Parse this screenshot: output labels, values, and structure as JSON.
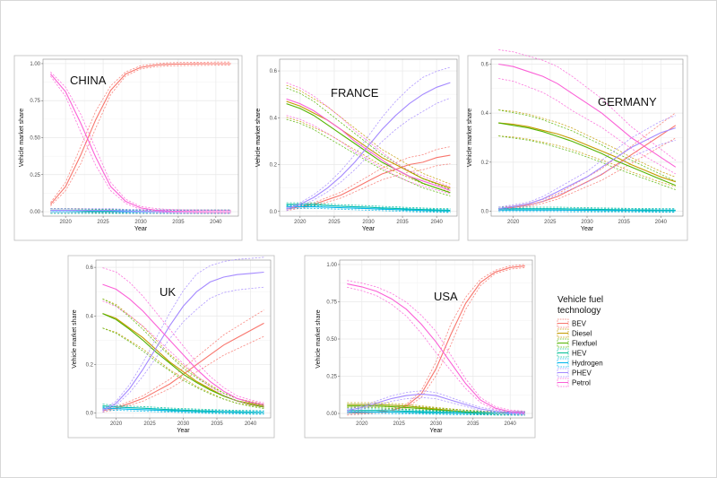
{
  "legend": {
    "title_line1": "Vehicle fuel",
    "title_line2": "technology",
    "entries": [
      {
        "name": "BEV",
        "color": "#f8766d"
      },
      {
        "name": "Diesel",
        "color": "#c49a00"
      },
      {
        "name": "Flexfuel",
        "color": "#53b400"
      },
      {
        "name": "HEV",
        "color": "#00c094"
      },
      {
        "name": "Hydrogen",
        "color": "#00b6eb"
      },
      {
        "name": "PHEV",
        "color": "#a58aff"
      },
      {
        "name": "Petrol",
        "color": "#fb61d7"
      }
    ]
  },
  "chart_data": [
    {
      "type": "line",
      "title": "CHINA",
      "xlabel": "Year",
      "ylabel": "Vehicle market share",
      "xlim": [
        2017,
        2043
      ],
      "ylim": [
        -0.03,
        1.03
      ],
      "xticks": [
        2020,
        2025,
        2030,
        2035,
        2040
      ],
      "yticks": [
        0,
        0.25,
        0.5,
        0.75,
        1
      ],
      "ytick_labels": [
        "0.00",
        "0.25",
        "0.50",
        "0.75",
        "1.00"
      ],
      "x": [
        2018,
        2020,
        2022,
        2024,
        2026,
        2028,
        2030,
        2032,
        2034,
        2036,
        2038,
        2040,
        2042
      ],
      "series": [
        {
          "name": "BEV",
          "values": [
            0.05,
            0.17,
            0.38,
            0.62,
            0.82,
            0.93,
            0.975,
            0.99,
            0.996,
            0.998,
            0.999,
            1.0,
            1.0
          ]
        },
        {
          "name": "Diesel",
          "values": [
            0.01,
            0.01,
            0.01,
            0.005,
            0.005,
            0.003,
            0.002,
            0.001,
            0.001,
            0.0,
            0.0,
            0.0,
            0.0
          ]
        },
        {
          "name": "Flexfuel",
          "values": [
            0.0,
            0.0,
            0.0,
            0.0,
            0.0,
            0.0,
            0.0,
            0.0,
            0.0,
            0.0,
            0.0,
            0.0,
            0.0
          ]
        },
        {
          "name": "HEV",
          "values": [
            0.01,
            0.01,
            0.008,
            0.006,
            0.004,
            0.003,
            0.002,
            0.001,
            0.0,
            0.0,
            0.0,
            0.0,
            0.0
          ]
        },
        {
          "name": "Hydrogen",
          "values": [
            0.0,
            0.0,
            0.0,
            0.0,
            0.0,
            0.0,
            0.0,
            0.0,
            0.0,
            0.0,
            0.0,
            0.0,
            0.0
          ]
        },
        {
          "name": "PHEV",
          "values": [
            0.01,
            0.01,
            0.01,
            0.01,
            0.01,
            0.005,
            0.003,
            0.002,
            0.001,
            0.0,
            0.0,
            0.0,
            0.0
          ]
        },
        {
          "name": "Petrol",
          "values": [
            0.93,
            0.81,
            0.6,
            0.37,
            0.17,
            0.07,
            0.025,
            0.01,
            0.004,
            0.002,
            0.001,
            0.0,
            0.0
          ]
        }
      ]
    },
    {
      "type": "line",
      "title": "FRANCE",
      "xlabel": "Year",
      "ylabel": "Vehicle market share",
      "xlim": [
        2017,
        2043
      ],
      "ylim": [
        -0.02,
        0.65
      ],
      "xticks": [
        2020,
        2025,
        2030,
        2035,
        2040
      ],
      "yticks": [
        0,
        0.2,
        0.4,
        0.6
      ],
      "ytick_labels": [
        "0.0",
        "0.2",
        "0.4",
        "0.6"
      ],
      "x": [
        2018,
        2020,
        2022,
        2024,
        2026,
        2028,
        2030,
        2032,
        2034,
        2036,
        2038,
        2040,
        2042
      ],
      "series": [
        {
          "name": "BEV",
          "values": [
            0.01,
            0.02,
            0.03,
            0.05,
            0.07,
            0.1,
            0.13,
            0.16,
            0.18,
            0.2,
            0.21,
            0.23,
            0.24
          ]
        },
        {
          "name": "Diesel",
          "values": [
            0.47,
            0.45,
            0.42,
            0.39,
            0.35,
            0.31,
            0.27,
            0.23,
            0.2,
            0.17,
            0.14,
            0.12,
            0.1
          ]
        },
        {
          "name": "Flexfuel",
          "values": [
            0.46,
            0.44,
            0.41,
            0.37,
            0.33,
            0.29,
            0.25,
            0.21,
            0.18,
            0.15,
            0.12,
            0.1,
            0.08
          ]
        },
        {
          "name": "HEV",
          "values": [
            0.03,
            0.03,
            0.03,
            0.025,
            0.022,
            0.02,
            0.018,
            0.015,
            0.013,
            0.01,
            0.008,
            0.006,
            0.005
          ]
        },
        {
          "name": "Hydrogen",
          "values": [
            0.02,
            0.02,
            0.02,
            0.018,
            0.016,
            0.014,
            0.012,
            0.01,
            0.008,
            0.006,
            0.004,
            0.003,
            0.002
          ]
        },
        {
          "name": "PHEV",
          "values": [
            0.01,
            0.03,
            0.06,
            0.1,
            0.15,
            0.21,
            0.28,
            0.35,
            0.41,
            0.46,
            0.5,
            0.53,
            0.55
          ]
        },
        {
          "name": "Petrol",
          "values": [
            0.48,
            0.46,
            0.43,
            0.39,
            0.35,
            0.3,
            0.26,
            0.22,
            0.18,
            0.15,
            0.13,
            0.11,
            0.09
          ]
        }
      ]
    },
    {
      "type": "line",
      "title": "GERMANY",
      "xlabel": "Year",
      "ylabel": "Vehicle market share",
      "xlim": [
        2017,
        2043
      ],
      "ylim": [
        -0.02,
        0.62
      ],
      "xticks": [
        2020,
        2025,
        2030,
        2035,
        2040
      ],
      "yticks": [
        0,
        0.2,
        0.4,
        0.6
      ],
      "ytick_labels": [
        "0.0",
        "0.2",
        "0.4",
        "0.6"
      ],
      "x": [
        2018,
        2020,
        2022,
        2024,
        2026,
        2028,
        2030,
        2032,
        2034,
        2036,
        2038,
        2040,
        2042
      ],
      "series": [
        {
          "name": "BEV",
          "values": [
            0.01,
            0.015,
            0.025,
            0.04,
            0.06,
            0.09,
            0.12,
            0.15,
            0.19,
            0.23,
            0.27,
            0.31,
            0.35
          ]
        },
        {
          "name": "Diesel",
          "values": [
            0.36,
            0.355,
            0.345,
            0.33,
            0.315,
            0.295,
            0.27,
            0.245,
            0.22,
            0.19,
            0.165,
            0.14,
            0.12
          ]
        },
        {
          "name": "Flexfuel",
          "values": [
            0.36,
            0.35,
            0.34,
            0.325,
            0.305,
            0.285,
            0.26,
            0.235,
            0.205,
            0.18,
            0.155,
            0.13,
            0.105
          ]
        },
        {
          "name": "HEV",
          "values": [
            0.01,
            0.01,
            0.01,
            0.01,
            0.01,
            0.009,
            0.008,
            0.007,
            0.006,
            0.005,
            0.005,
            0.004,
            0.004
          ]
        },
        {
          "name": "Hydrogen",
          "values": [
            0.005,
            0.005,
            0.005,
            0.005,
            0.005,
            0.004,
            0.004,
            0.003,
            0.003,
            0.003,
            0.002,
            0.002,
            0.002
          ]
        },
        {
          "name": "PHEV",
          "values": [
            0.01,
            0.02,
            0.03,
            0.05,
            0.08,
            0.11,
            0.14,
            0.18,
            0.22,
            0.26,
            0.29,
            0.32,
            0.34
          ]
        },
        {
          "name": "Petrol",
          "values": [
            0.6,
            0.59,
            0.57,
            0.55,
            0.52,
            0.48,
            0.44,
            0.4,
            0.35,
            0.3,
            0.26,
            0.22,
            0.18
          ]
        }
      ]
    },
    {
      "type": "line",
      "title": "UK",
      "xlabel": "Year",
      "ylabel": "Vehicle market share",
      "xlim": [
        2017,
        2043
      ],
      "ylim": [
        -0.02,
        0.63
      ],
      "xticks": [
        2020,
        2025,
        2030,
        2035,
        2040
      ],
      "yticks": [
        0,
        0.2,
        0.4,
        0.6
      ],
      "ytick_labels": [
        "0.0",
        "0.2",
        "0.4",
        "0.6"
      ],
      "x": [
        2018,
        2020,
        2022,
        2024,
        2026,
        2028,
        2030,
        2032,
        2034,
        2036,
        2038,
        2040,
        2042
      ],
      "series": [
        {
          "name": "BEV",
          "values": [
            0.01,
            0.02,
            0.04,
            0.06,
            0.09,
            0.12,
            0.16,
            0.2,
            0.24,
            0.28,
            0.31,
            0.34,
            0.37
          ]
        },
        {
          "name": "Diesel",
          "values": [
            0.41,
            0.39,
            0.35,
            0.31,
            0.26,
            0.21,
            0.17,
            0.13,
            0.1,
            0.07,
            0.05,
            0.04,
            0.03
          ]
        },
        {
          "name": "Flexfuel",
          "values": [
            0.41,
            0.385,
            0.345,
            0.3,
            0.25,
            0.205,
            0.16,
            0.125,
            0.095,
            0.07,
            0.05,
            0.035,
            0.025
          ]
        },
        {
          "name": "HEV",
          "values": [
            0.03,
            0.025,
            0.022,
            0.02,
            0.017,
            0.014,
            0.012,
            0.01,
            0.008,
            0.006,
            0.005,
            0.004,
            0.003
          ]
        },
        {
          "name": "Hydrogen",
          "values": [
            0.02,
            0.018,
            0.016,
            0.014,
            0.012,
            0.01,
            0.008,
            0.006,
            0.005,
            0.004,
            0.003,
            0.002,
            0.002
          ]
        },
        {
          "name": "PHEV",
          "values": [
            0.01,
            0.04,
            0.1,
            0.18,
            0.27,
            0.36,
            0.44,
            0.5,
            0.54,
            0.56,
            0.57,
            0.575,
            0.58
          ]
        },
        {
          "name": "Petrol",
          "values": [
            0.53,
            0.51,
            0.47,
            0.42,
            0.36,
            0.3,
            0.24,
            0.18,
            0.13,
            0.09,
            0.06,
            0.045,
            0.035
          ]
        }
      ]
    },
    {
      "type": "line",
      "title": "USA",
      "xlabel": "Year",
      "ylabel": "Vehicle market share",
      "xlim": [
        2017,
        2043
      ],
      "ylim": [
        -0.03,
        1.03
      ],
      "xticks": [
        2020,
        2025,
        2030,
        2035,
        2040
      ],
      "yticks": [
        0,
        0.25,
        0.5,
        0.75,
        1
      ],
      "ytick_labels": [
        "0.00",
        "0.25",
        "0.50",
        "0.75",
        "1.00"
      ],
      "x": [
        2018,
        2020,
        2022,
        2024,
        2026,
        2028,
        2030,
        2032,
        2034,
        2036,
        2038,
        2040,
        2042
      ],
      "series": [
        {
          "name": "BEV",
          "values": [
            0.0,
            0.005,
            0.01,
            0.02,
            0.05,
            0.13,
            0.3,
            0.53,
            0.74,
            0.88,
            0.95,
            0.98,
            0.99
          ]
        },
        {
          "name": "Diesel",
          "values": [
            0.06,
            0.06,
            0.06,
            0.055,
            0.05,
            0.04,
            0.03,
            0.02,
            0.012,
            0.006,
            0.003,
            0.001,
            0.0
          ]
        },
        {
          "name": "Flexfuel",
          "values": [
            0.05,
            0.05,
            0.05,
            0.045,
            0.04,
            0.033,
            0.025,
            0.017,
            0.01,
            0.005,
            0.002,
            0.001,
            0.0
          ]
        },
        {
          "name": "HEV",
          "values": [
            0.02,
            0.02,
            0.02,
            0.018,
            0.015,
            0.012,
            0.009,
            0.006,
            0.004,
            0.002,
            0.001,
            0.0,
            0.0
          ]
        },
        {
          "name": "Hydrogen",
          "values": [
            0.01,
            0.01,
            0.01,
            0.009,
            0.008,
            0.006,
            0.005,
            0.003,
            0.002,
            0.001,
            0.0,
            0.0,
            0.0
          ]
        },
        {
          "name": "PHEV",
          "values": [
            0.02,
            0.04,
            0.07,
            0.1,
            0.12,
            0.13,
            0.12,
            0.09,
            0.06,
            0.03,
            0.015,
            0.005,
            0.002
          ]
        },
        {
          "name": "Petrol",
          "values": [
            0.87,
            0.85,
            0.82,
            0.77,
            0.7,
            0.6,
            0.48,
            0.34,
            0.2,
            0.09,
            0.035,
            0.012,
            0.005
          ]
        }
      ]
    }
  ]
}
